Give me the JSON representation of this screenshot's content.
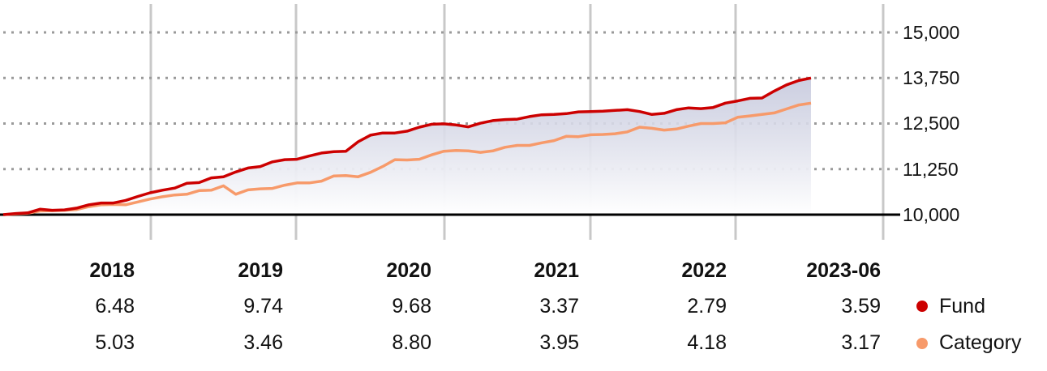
{
  "chart_data": {
    "type": "area",
    "y_ticks": [
      "15,000",
      "13,750",
      "12,500",
      "11,250",
      "10,000"
    ],
    "y_tick_values": [
      15000,
      13750,
      12500,
      11250,
      10000
    ],
    "ylim": [
      9950,
      15400
    ],
    "grid": "dotted horizontal",
    "columns": [
      "2018",
      "2019",
      "2020",
      "2021",
      "2022",
      "2023-06"
    ],
    "annual_returns": {
      "fund": [
        "6.48",
        "9.74",
        "9.68",
        "3.37",
        "2.79",
        "3.59"
      ],
      "category": [
        "5.03",
        "3.46",
        "8.80",
        "3.95",
        "4.18",
        "3.17"
      ]
    },
    "legend": [
      {
        "label": "Fund",
        "color": "#cc0000"
      },
      {
        "label": "Category",
        "color": "#f79a6a"
      }
    ],
    "series": [
      {
        "name": "Fund",
        "color": "#cc0000",
        "values": [
          10000,
          10030,
          10050,
          10150,
          10120,
          10130,
          10180,
          10270,
          10320,
          10320,
          10390,
          10500,
          10600,
          10670,
          10730,
          10860,
          10880,
          11010,
          11040,
          11170,
          11280,
          11320,
          11450,
          11510,
          11520,
          11610,
          11690,
          11730,
          11740,
          12000,
          12180,
          12240,
          12240,
          12290,
          12400,
          12480,
          12490,
          12460,
          12410,
          12510,
          12580,
          12610,
          12620,
          12690,
          12740,
          12750,
          12770,
          12820,
          12830,
          12840,
          12860,
          12880,
          12830,
          12750,
          12780,
          12880,
          12930,
          12910,
          12940,
          13060,
          13120,
          13190,
          13200,
          13390,
          13560,
          13680,
          13750
        ]
      },
      {
        "name": "Category",
        "color": "#f79a6a",
        "values": [
          10000,
          10020,
          10040,
          10100,
          10110,
          10120,
          10140,
          10220,
          10270,
          10280,
          10270,
          10350,
          10430,
          10490,
          10540,
          10560,
          10660,
          10670,
          10790,
          10560,
          10680,
          10710,
          10720,
          10810,
          10870,
          10870,
          10920,
          11060,
          11070,
          11040,
          11160,
          11320,
          11510,
          11500,
          11520,
          11640,
          11740,
          11760,
          11750,
          11710,
          11750,
          11850,
          11900,
          11900,
          11970,
          12030,
          12150,
          12140,
          12190,
          12200,
          12220,
          12270,
          12400,
          12370,
          12320,
          12350,
          12430,
          12500,
          12500,
          12520,
          12670,
          12710,
          12750,
          12790,
          12900,
          13010,
          13060
        ]
      }
    ]
  }
}
